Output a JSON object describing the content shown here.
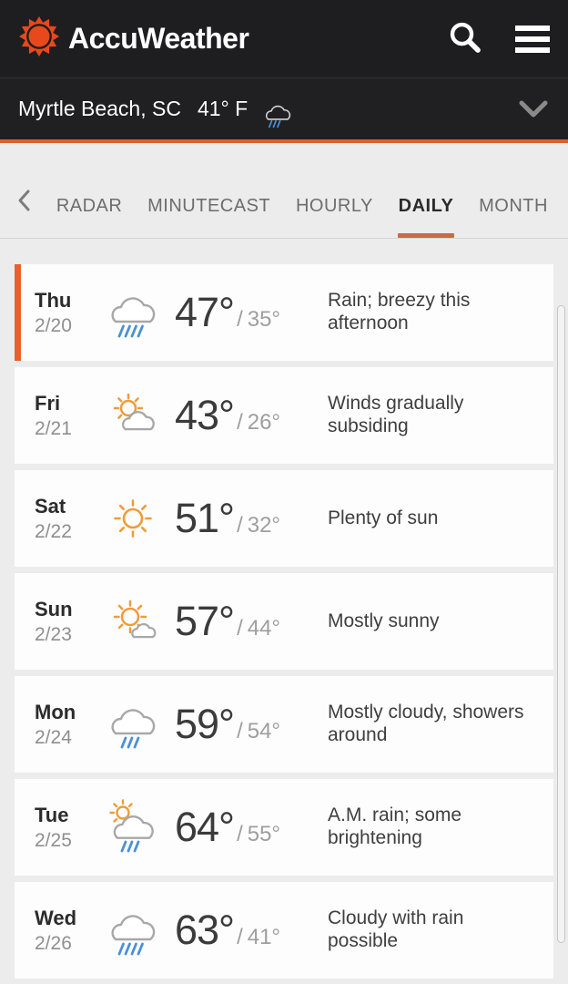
{
  "header": {
    "app_name": "AccuWeather",
    "icons": {
      "logo": "accuweather-sun",
      "search": "magnifier",
      "menu": "hamburger-menu"
    }
  },
  "location_bar": {
    "location": "Myrtle Beach, SC",
    "temperature": "41° F",
    "condition_icon": "rain",
    "expand_icon": "chevron-down"
  },
  "tabs": {
    "back_icon": "chevron-left",
    "items": [
      {
        "label": "RADAR",
        "active": false
      },
      {
        "label": "MINUTECAST",
        "active": false
      },
      {
        "label": "HOURLY",
        "active": false
      },
      {
        "label": "DAILY",
        "active": true
      },
      {
        "label": "MONTH",
        "active": false
      }
    ]
  },
  "forecast": {
    "temp_separator": "/",
    "days": [
      {
        "day": "Thu",
        "date": "2/20",
        "icon": "rain",
        "high": "47°",
        "low": "35°",
        "description": "Rain; breezy this afternoon",
        "today": true
      },
      {
        "day": "Fri",
        "date": "2/21",
        "icon": "partly-sunny",
        "high": "43°",
        "low": "26°",
        "description": "Winds gradually subsiding",
        "today": false
      },
      {
        "day": "Sat",
        "date": "2/22",
        "icon": "sunny",
        "high": "51°",
        "low": "32°",
        "description": "Plenty of sun",
        "today": false
      },
      {
        "day": "Sun",
        "date": "2/23",
        "icon": "mostly-sunny",
        "high": "57°",
        "low": "44°",
        "description": "Mostly sunny",
        "today": false
      },
      {
        "day": "Mon",
        "date": "2/24",
        "icon": "showers",
        "high": "59°",
        "low": "54°",
        "description": "Mostly cloudy, showers around",
        "today": false
      },
      {
        "day": "Tue",
        "date": "2/25",
        "icon": "am-rain",
        "high": "64°",
        "low": "55°",
        "description": "A.M. rain; some brightening",
        "today": false
      },
      {
        "day": "Wed",
        "date": "2/26",
        "icon": "rain",
        "high": "63°",
        "low": "41°",
        "description": "Cloudy with rain possible",
        "today": false
      }
    ]
  },
  "colors": {
    "accent_orange": "#DD5F2B",
    "logo_orange": "#E8491C",
    "tab_underline": "#C86B43",
    "today_indicator": "#E8612C",
    "rain_blue": "#4A90D9",
    "sun_orange": "#F09C38",
    "cloud_gray": "#A8A8A8"
  }
}
